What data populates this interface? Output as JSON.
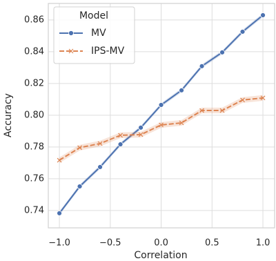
{
  "chart_data": {
    "type": "line",
    "xlabel": "Correlation",
    "ylabel": "Accuracy",
    "x": [
      -1.0,
      -0.8,
      -0.6,
      -0.4,
      -0.2,
      0.0,
      0.2,
      0.4,
      0.6,
      0.8,
      1.0
    ],
    "series": [
      {
        "name": "MV",
        "color": "#4c72b0",
        "marker": "o",
        "dash": false,
        "values": [
          0.7383,
          0.7552,
          0.7674,
          0.7817,
          0.7922,
          0.8065,
          0.8157,
          0.8309,
          0.8396,
          0.8526,
          0.863
        ],
        "lower": [
          0.7371,
          0.754,
          0.7662,
          0.7805,
          0.791,
          0.8053,
          0.8145,
          0.8297,
          0.8384,
          0.8514,
          0.8618
        ],
        "upper": [
          0.7395,
          0.7564,
          0.7686,
          0.7829,
          0.7934,
          0.8077,
          0.8169,
          0.8321,
          0.8408,
          0.8538,
          0.8642
        ]
      },
      {
        "name": "IPS-MV",
        "color": "#dd8452",
        "marker": "x",
        "dash": true,
        "values": [
          0.7717,
          0.7796,
          0.7822,
          0.7874,
          0.7878,
          0.7939,
          0.7952,
          0.803,
          0.803,
          0.8096,
          0.8109
        ],
        "lower": [
          0.7699,
          0.7778,
          0.7804,
          0.7856,
          0.786,
          0.7921,
          0.7934,
          0.8012,
          0.8012,
          0.8078,
          0.8091
        ],
        "upper": [
          0.7735,
          0.7814,
          0.784,
          0.7892,
          0.7896,
          0.7957,
          0.797,
          0.8048,
          0.8048,
          0.8114,
          0.8127
        ]
      }
    ],
    "xlim": [
      -1.109,
      1.115
    ],
    "ylim": [
      0.7291,
      0.8704
    ],
    "xticks": [
      {
        "value": -1.0,
        "label": "−1.0"
      },
      {
        "value": -0.5,
        "label": "−0.5"
      },
      {
        "value": 0.0,
        "label": "0.0"
      },
      0.5,
      {
        "value": 1.0,
        "label": "1.0"
      }
    ],
    "yticks": [
      0.74,
      0.76,
      0.78,
      {
        "value": 0.8,
        "label": "0.80"
      },
      0.82,
      0.84,
      0.86
    ],
    "grid": true,
    "legend": {
      "title": "Model",
      "loc": "upper left"
    }
  }
}
